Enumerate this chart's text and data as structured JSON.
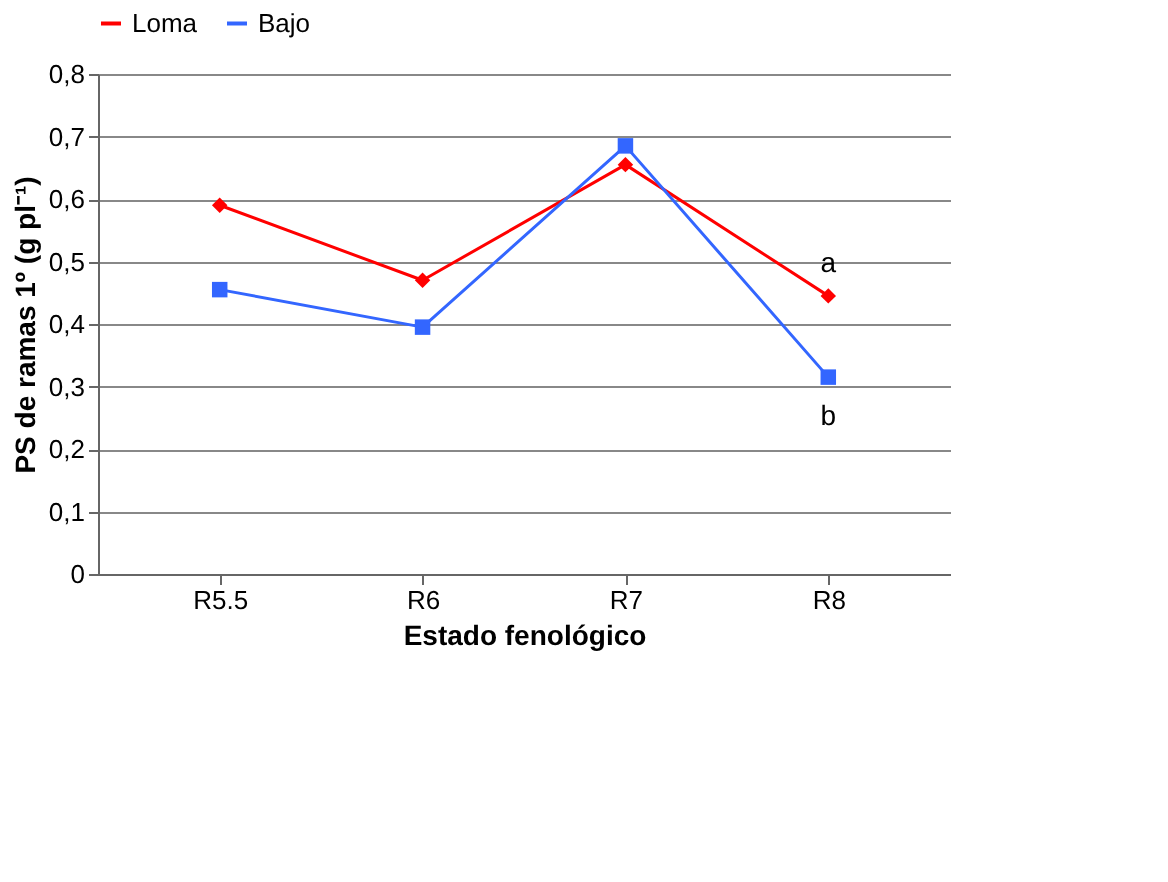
{
  "chart_data": {
    "type": "line",
    "xlabel": "Estado fenológico",
    "ylabel": "PS de ramas 1º (g pl⁻¹)",
    "categories": [
      "R5.5",
      "R6",
      "R7",
      "R8"
    ],
    "series": [
      {
        "name": "Loma",
        "color": "#ff0000",
        "marker": "diamond",
        "values": [
          0.59,
          0.47,
          0.655,
          0.445
        ]
      },
      {
        "name": "Bajo",
        "color": "#3366ff",
        "marker": "square",
        "values": [
          0.455,
          0.395,
          0.685,
          0.315
        ]
      }
    ],
    "ylim": [
      0,
      0.8
    ],
    "yticks": [
      0,
      {
        "value": 0.1,
        "label": "0,1"
      },
      {
        "value": 0.2,
        "label": "0,2"
      },
      {
        "value": 0.3,
        "label": "0,3"
      },
      {
        "value": 0.4,
        "label": "0,4"
      },
      {
        "value": 0.5,
        "label": "0,5"
      },
      {
        "value": 0.6,
        "label": "0,6"
      },
      {
        "value": 0.7,
        "label": "0,7"
      },
      {
        "value": 0.8,
        "label": "0,8"
      }
    ],
    "annotations": [
      "a",
      "b"
    ],
    "grid": "y",
    "legend": "top",
    "line_style": "solid"
  }
}
